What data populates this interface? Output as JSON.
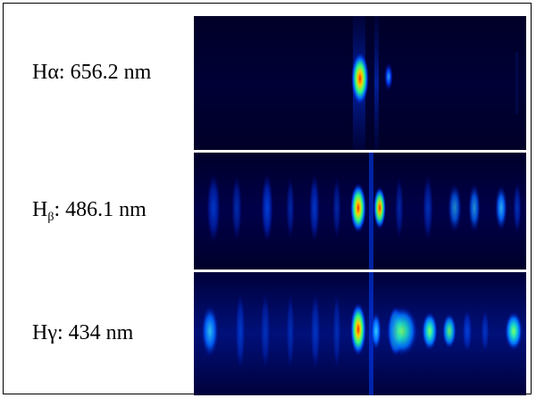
{
  "rows": [
    {
      "label_prefix": "H",
      "label_sub": "",
      "label_suffix": "α: 656.2 nm"
    },
    {
      "label_prefix": "H",
      "label_sub": "β",
      "label_suffix": ": 486.1 nm"
    },
    {
      "label_prefix": "H",
      "label_sub": "",
      "label_suffix": "γ: 434 nm"
    }
  ],
  "colors": {
    "panel_background": "#00003a",
    "border": "#000000",
    "text": "#000000"
  }
}
